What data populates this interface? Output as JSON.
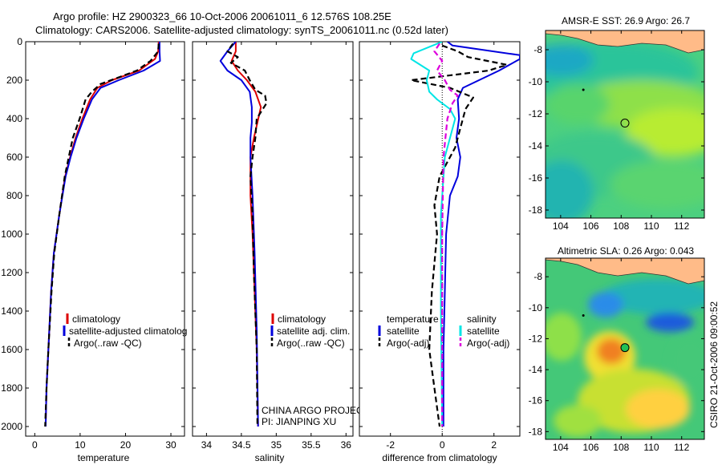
{
  "titles": {
    "line1": "Argo profile: HZ 2900323_66 10-Oct-2006 20061011_6 12.576S 108.25E",
    "line2": "Climatology: CARS2006. Satellite-adjusted climatology: synTS_20061011.nc (0.52d later)"
  },
  "side_stamp": "CSIRO 21-Oct-2006 09:00:52",
  "colors": {
    "climatology": "#dd0000",
    "satellite": "#0000dd",
    "argo": "#000000",
    "salinity_satellite": "#00e5e5",
    "salinity_argo": "#dd00dd",
    "land": "#ffbb88"
  },
  "chart_data": [
    {
      "type": "line",
      "name": "temperature-panel",
      "xlabel": "temperature",
      "ylabel": "",
      "xlim": [
        -2,
        33
      ],
      "ylim": [
        2050,
        0
      ],
      "y_reversed": true,
      "xticks": [
        0,
        10,
        20,
        30
      ],
      "yticks": [
        0,
        200,
        400,
        600,
        800,
        1000,
        1200,
        1400,
        1600,
        1800,
        2000
      ],
      "legend": [
        "climatology",
        "satellite-adjusted climatolog",
        "Argo(..raw -QC)"
      ],
      "series": [
        {
          "name": "climatology",
          "style": "solid",
          "color_key": "climatology",
          "x": [
            27.3,
            27.2,
            26.5,
            23,
            17,
            13.8,
            12.2,
            10.5,
            9.0,
            7.8,
            6.7,
            5.4,
            4.2,
            3.6,
            3.0,
            2.6,
            2.4
          ],
          "y": [
            0,
            50,
            90,
            150,
            200,
            240,
            300,
            400,
            500,
            600,
            700,
            900,
            1100,
            1300,
            1600,
            1800,
            2000
          ]
        },
        {
          "name": "satellite-adjusted climatolog",
          "style": "solid",
          "color_key": "satellite",
          "x": [
            27.5,
            27.5,
            27.6,
            24,
            18.5,
            14.5,
            12.6,
            10.8,
            9.2,
            7.9,
            6.8,
            5.4,
            4.2,
            3.6,
            3.0,
            2.6,
            2.4
          ],
          "y": [
            0,
            50,
            100,
            150,
            200,
            240,
            300,
            400,
            500,
            600,
            700,
            900,
            1100,
            1300,
            1600,
            1800,
            2000
          ]
        },
        {
          "name": "Argo(..raw -QC)",
          "style": "dashed",
          "color_key": "argo",
          "x": [
            27.3,
            27.2,
            25.5,
            22.5,
            18,
            14.5,
            12.6,
            11.2,
            9.9,
            8.4,
            7.5,
            6.6,
            5.4,
            4.3,
            3.7,
            3.0,
            2.6,
            2.3
          ],
          "y": [
            10,
            50,
            100,
            150,
            190,
            220,
            260,
            300,
            400,
            500,
            600,
            700,
            900,
            1100,
            1300,
            1600,
            1800,
            2000
          ]
        }
      ]
    },
    {
      "type": "line",
      "name": "salinity-panel",
      "xlabel": "salinity",
      "ylabel": "",
      "xlim": [
        33.8,
        36.1
      ],
      "ylim": [
        2050,
        0
      ],
      "y_reversed": true,
      "xticks": [
        34,
        34.5,
        35,
        35.5,
        36
      ],
      "legend": [
        "climatology",
        "satellite adj. clim.",
        "Argo(..raw -QC)"
      ],
      "annotations": [
        "CHINA ARGO PROJECT",
        "PI: JIANPING XU"
      ],
      "series": [
        {
          "name": "climatology",
          "style": "solid",
          "color_key": "climatology",
          "x": [
            34.42,
            34.42,
            34.36,
            34.45,
            34.58,
            34.7,
            34.78,
            34.73,
            34.68,
            34.63,
            34.63,
            34.66,
            34.69,
            34.72,
            34.74
          ],
          "y": [
            0,
            50,
            100,
            150,
            200,
            260,
            340,
            420,
            500,
            600,
            800,
            1000,
            1300,
            1600,
            2000
          ]
        },
        {
          "name": "satellite adj. clim.",
          "style": "solid",
          "color_key": "satellite",
          "x": [
            34.42,
            34.3,
            34.2,
            34.3,
            34.5,
            34.62,
            34.65,
            34.65,
            34.63,
            34.63,
            34.66,
            34.69,
            34.72,
            34.74
          ],
          "y": [
            0,
            50,
            100,
            150,
            200,
            260,
            340,
            420,
            500,
            600,
            800,
            1100,
            1500,
            2000
          ]
        },
        {
          "name": "Argo(..raw -QC)",
          "style": "dashed",
          "color_key": "argo",
          "x": [
            34.38,
            34.3,
            34.45,
            34.35,
            34.55,
            34.62,
            34.7,
            34.84,
            34.86,
            34.72,
            34.7,
            34.66,
            34.63,
            34.66,
            34.68,
            34.72,
            34.73
          ],
          "y": [
            10,
            50,
            80,
            110,
            150,
            200,
            250,
            280,
            320,
            400,
            500,
            600,
            700,
            900,
            1200,
            1600,
            2000
          ]
        }
      ]
    },
    {
      "type": "line",
      "name": "difference-panel",
      "xlabel": "difference from climatology",
      "ylabel": "",
      "xlim": [
        -3.2,
        3.0
      ],
      "ylim": [
        2050,
        0
      ],
      "y_reversed": true,
      "xticks": [
        -2,
        0,
        2
      ],
      "legend": [
        "temperature",
        "satellite",
        "Argo(-adj)",
        "salinity",
        "satellite",
        "Argo(-adj)"
      ],
      "series": [
        {
          "name": "temperature satellite",
          "style": "solid",
          "color_key": "satellite",
          "x": [
            0.2,
            0.4,
            3.0,
            3.0,
            2.2,
            0.8,
            0.6,
            0.65,
            0.55,
            0.7,
            0.6,
            0.3,
            0.15,
            0.1,
            0.05,
            0.05
          ],
          "y": [
            0,
            20,
            70,
            90,
            150,
            240,
            300,
            400,
            500,
            600,
            700,
            800,
            1000,
            1300,
            1600,
            2000
          ]
        },
        {
          "name": "temperature Argo(-adj)",
          "style": "dashed",
          "color_key": "argo",
          "x": [
            0.0,
            0.6,
            1.0,
            2.5,
            1.8,
            -1.2,
            0.3,
            1.2,
            0.9,
            0.7,
            0.5,
            -0.1,
            -0.3,
            -0.2,
            -0.4,
            -0.5,
            -0.3,
            -0.1
          ],
          "y": [
            20,
            50,
            80,
            120,
            150,
            200,
            240,
            290,
            350,
            450,
            550,
            700,
            850,
            1000,
            1300,
            1600,
            1800,
            2000
          ]
        },
        {
          "name": "salinity satellite",
          "style": "solid",
          "color_key": "salinity_satellite",
          "x": [
            0.0,
            -1.1,
            -1.2,
            -0.5,
            -0.6,
            -0.5,
            -0.2,
            0.3,
            0.5,
            0.1,
            -0.05,
            -0.05,
            0.0
          ],
          "y": [
            0,
            60,
            90,
            150,
            200,
            260,
            300,
            350,
            400,
            600,
            900,
            1400,
            2000
          ]
        },
        {
          "name": "salinity Argo(-adj)",
          "style": "dashed",
          "color_key": "salinity_argo",
          "x": [
            -0.1,
            -0.3,
            0.0,
            -0.2,
            0.1,
            0.3,
            0.6,
            0.4,
            0.2,
            0.05,
            0.0,
            0.0
          ],
          "y": [
            10,
            50,
            100,
            150,
            200,
            250,
            280,
            320,
            400,
            600,
            1000,
            2000
          ]
        }
      ]
    },
    {
      "type": "heatmap",
      "name": "sst-map",
      "title": "AMSR-E SST: 26.9 Argo: 26.7",
      "xlim": [
        103,
        113.5
      ],
      "ylim": [
        -18.5,
        -6.8
      ],
      "xticks": [
        104,
        106,
        108,
        110,
        112
      ],
      "yticks": [
        -8,
        -10,
        -12,
        -14,
        -16,
        -18
      ],
      "argo_position": [
        108.25,
        -12.576
      ]
    },
    {
      "type": "heatmap",
      "name": "sla-map",
      "title": "Altimetric SLA: 0.26 Argo: 0.043",
      "xlim": [
        103,
        113.5
      ],
      "ylim": [
        -18.5,
        -6.8
      ],
      "xticks": [
        104,
        106,
        108,
        110,
        112
      ],
      "yticks": [
        -8,
        -10,
        -12,
        -14,
        -16,
        -18
      ],
      "argo_position": [
        108.25,
        -12.576
      ]
    }
  ]
}
